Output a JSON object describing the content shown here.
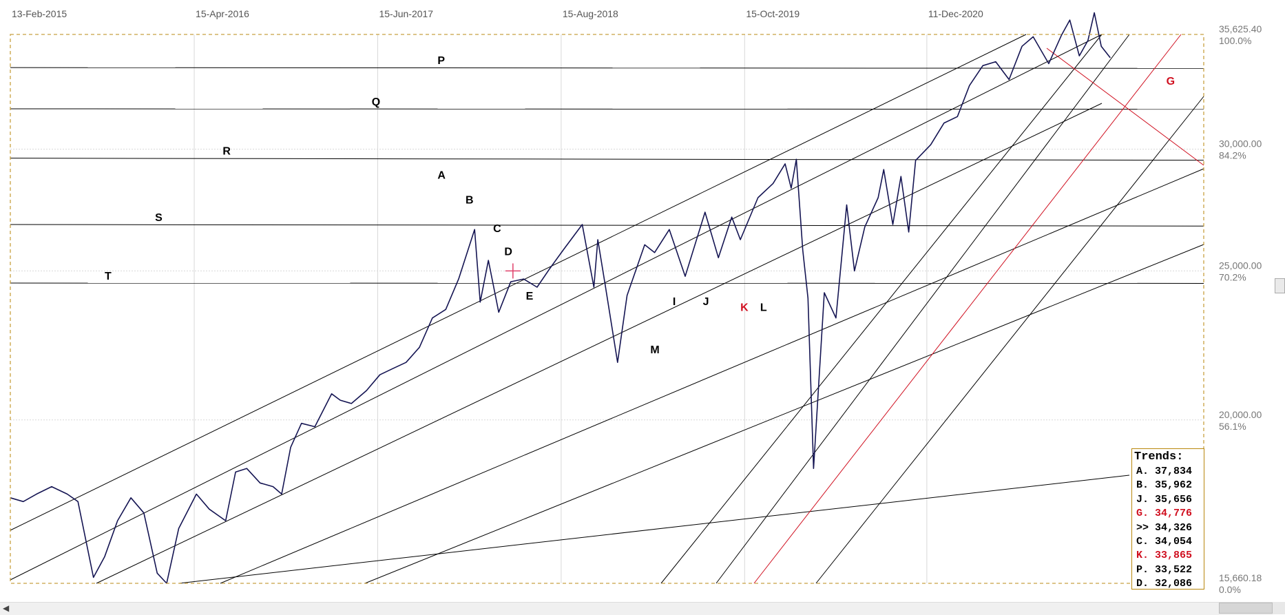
{
  "chart_data": {
    "type": "line",
    "title": "",
    "xlabel": "",
    "ylabel": "",
    "x_ticks": [
      "13-Feb-2015",
      "15-Apr-2016",
      "15-Jun-2017",
      "15-Aug-2018",
      "15-Oct-2019",
      "11-Dec-2020"
    ],
    "y_ticks": [
      {
        "value": 35625.4,
        "label": "35,625.40",
        "pct": "100.0%"
      },
      {
        "value": 30000,
        "label": "30,000.00",
        "pct": "84.2%"
      },
      {
        "value": 25000,
        "label": "25,000.00",
        "pct": "70.2%"
      },
      {
        "value": 20000,
        "label": "20,000.00",
        "pct": "56.1%"
      },
      {
        "value": 15660.18,
        "label": "15,660.18",
        "pct": "0.0%"
      }
    ],
    "ylim": [
      15660.18,
      35625.4
    ],
    "grid": true,
    "series": [
      {
        "points": [
          [
            "2015-02-13",
            17800
          ],
          [
            "2015-03-15",
            17700
          ],
          [
            "2015-04-15",
            17900
          ],
          [
            "2015-05-20",
            18100
          ],
          [
            "2015-06-25",
            17900
          ],
          [
            "2015-07-20",
            17700
          ],
          [
            "2015-08-25",
            15800
          ],
          [
            "2015-09-20",
            16300
          ],
          [
            "2015-10-20",
            17200
          ],
          [
            "2015-11-20",
            17800
          ],
          [
            "2015-12-20",
            17400
          ],
          [
            "2016-01-20",
            15900
          ],
          [
            "2016-02-11",
            15660
          ],
          [
            "2016-03-10",
            17000
          ],
          [
            "2016-04-20",
            17900
          ],
          [
            "2016-05-20",
            17500
          ],
          [
            "2016-06-27",
            17200
          ],
          [
            "2016-07-20",
            18500
          ],
          [
            "2016-08-15",
            18600
          ],
          [
            "2016-09-15",
            18200
          ],
          [
            "2016-10-15",
            18100
          ],
          [
            "2016-11-04",
            17900
          ],
          [
            "2016-11-25",
            19200
          ],
          [
            "2016-12-20",
            19900
          ],
          [
            "2017-01-20",
            19800
          ],
          [
            "2017-02-28",
            20800
          ],
          [
            "2017-03-20",
            20600
          ],
          [
            "2017-04-15",
            20500
          ],
          [
            "2017-05-20",
            20900
          ],
          [
            "2017-06-20",
            21400
          ],
          [
            "2017-07-20",
            21600
          ],
          [
            "2017-08-20",
            21800
          ],
          [
            "2017-09-20",
            22300
          ],
          [
            "2017-10-20",
            23300
          ],
          [
            "2017-11-20",
            23600
          ],
          [
            "2017-12-20",
            24700
          ],
          [
            "2018-01-26",
            26600
          ],
          [
            "2018-02-08",
            23860
          ],
          [
            "2018-02-27",
            25400
          ],
          [
            "2018-03-23",
            23500
          ],
          [
            "2018-04-20",
            24600
          ],
          [
            "2018-05-20",
            24700
          ],
          [
            "2018-06-20",
            24400
          ],
          [
            "2018-07-20",
            25100
          ],
          [
            "2018-08-20",
            25800
          ],
          [
            "2018-10-03",
            26800
          ],
          [
            "2018-10-30",
            24400
          ],
          [
            "2018-11-08",
            26200
          ],
          [
            "2018-11-25",
            24500
          ],
          [
            "2018-12-24",
            21800
          ],
          [
            "2019-01-15",
            24100
          ],
          [
            "2019-02-25",
            26000
          ],
          [
            "2019-03-20",
            25700
          ],
          [
            "2019-04-23",
            26600
          ],
          [
            "2019-05-30",
            24800
          ],
          [
            "2019-07-15",
            27300
          ],
          [
            "2019-08-15",
            25500
          ],
          [
            "2019-09-15",
            27100
          ],
          [
            "2019-10-05",
            26200
          ],
          [
            "2019-11-15",
            27900
          ],
          [
            "2019-12-20",
            28500
          ],
          [
            "2020-01-17",
            29350
          ],
          [
            "2020-01-31",
            28300
          ],
          [
            "2020-02-12",
            29550
          ],
          [
            "2020-02-27",
            25800
          ],
          [
            "2020-03-10",
            24000
          ],
          [
            "2020-03-23",
            18600
          ],
          [
            "2020-04-17",
            24200
          ],
          [
            "2020-05-14",
            23300
          ],
          [
            "2020-06-08",
            27600
          ],
          [
            "2020-06-26",
            25000
          ],
          [
            "2020-07-20",
            26700
          ],
          [
            "2020-08-20",
            27900
          ],
          [
            "2020-09-02",
            29100
          ],
          [
            "2020-09-23",
            26800
          ],
          [
            "2020-10-12",
            28800
          ],
          [
            "2020-10-30",
            26500
          ],
          [
            "2020-11-15",
            29500
          ],
          [
            "2020-12-20",
            30200
          ],
          [
            "2021-01-20",
            31200
          ],
          [
            "2021-02-20",
            31500
          ],
          [
            "2021-03-20",
            33000
          ],
          [
            "2021-04-20",
            34000
          ],
          [
            "2021-05-20",
            34200
          ],
          [
            "2021-06-20",
            33300
          ],
          [
            "2021-07-20",
            35000
          ],
          [
            "2021-08-15",
            35500
          ],
          [
            "2021-09-20",
            34100
          ],
          [
            "2021-10-20",
            35600
          ],
          [
            "2021-11-08",
            36400
          ],
          [
            "2021-11-30",
            34500
          ],
          [
            "2021-12-20",
            35300
          ],
          [
            "2022-01-04",
            36800
          ],
          [
            "2022-01-20",
            35000
          ],
          [
            "2022-02-10",
            34400
          ]
        ]
      }
    ],
    "annotations": {
      "horizontal": [
        {
          "label": "P",
          "y1": 33900,
          "y2": 33860
        },
        {
          "label": "Q",
          "y1": 31870,
          "y2": 31850
        },
        {
          "label": "R",
          "y1": 29600,
          "y2": 29510
        },
        {
          "label": "S",
          "y1": 26800,
          "y2": 26740
        },
        {
          "label": "T",
          "y1": 24550,
          "y2": 24540
        }
      ],
      "trend_labels": [
        {
          "label": "A",
          "date": "2017-11-01",
          "value": 28700,
          "color": "#000000"
        },
        {
          "label": "B",
          "date": "2018-01-05",
          "value": 27650,
          "color": "#000000"
        },
        {
          "label": "C",
          "date": "2018-03-10",
          "value": 26500,
          "color": "#000000"
        },
        {
          "label": "D",
          "date": "2018-04-05",
          "value": 25600,
          "color": "#000000"
        },
        {
          "label": "E",
          "date": "2018-05-25",
          "value": 23950,
          "color": "#000000"
        },
        {
          "label": "I",
          "date": "2019-05-01",
          "value": 23750,
          "color": "#000000"
        },
        {
          "label": "J",
          "date": "2019-07-10",
          "value": 23750,
          "color": "#000000"
        },
        {
          "label": "K",
          "date": "2019-10-05",
          "value": 23550,
          "color": "#d01020"
        },
        {
          "label": "L",
          "date": "2019-11-20",
          "value": 23550,
          "color": "#000000"
        },
        {
          "label": "M",
          "date": "2019-03-10",
          "value": 22100,
          "color": "#000000"
        },
        {
          "label": "G",
          "date": "2022-06-20",
          "value": 33050,
          "color": "#d01020"
        }
      ],
      "cross_marker": {
        "date": "2018-04-25",
        "value": 25000
      }
    }
  },
  "legend": {
    "title": "Trends:",
    "rows": [
      {
        "text": "A. 37,834",
        "color": "#000000"
      },
      {
        "text": "B. 35,962",
        "color": "#000000"
      },
      {
        "text": "J. 35,656",
        "color": "#000000"
      },
      {
        "text": "G. 34,776",
        "color": "#d01020"
      },
      {
        "text": ">> 34,326",
        "color": "#000000"
      },
      {
        "text": "C. 34,054",
        "color": "#000000"
      },
      {
        "text": "K. 33,865",
        "color": "#d01020"
      },
      {
        "text": "P. 33,522",
        "color": "#000000"
      },
      {
        "text": "D. 32,086",
        "color": "#000000"
      }
    ]
  },
  "colors": {
    "price_line": "#141452",
    "trend_line": "#000000",
    "trend_red": "#d01020",
    "frame": "#c8a040",
    "grid": "#d8d8d8",
    "marker": "#e0406a"
  },
  "ui": {
    "scroll_left_icon": "chevron-left-icon",
    "scroll_right_icon": "chevron-right-icon"
  }
}
